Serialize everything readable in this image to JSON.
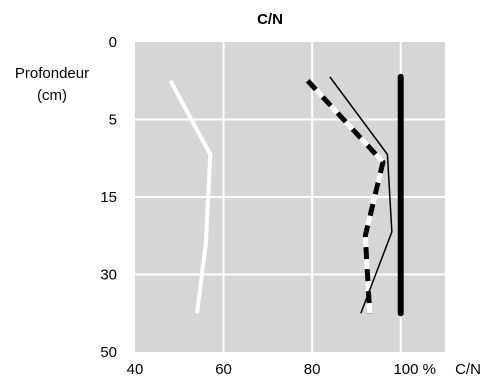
{
  "chart_data": {
    "type": "line",
    "title": "C/N",
    "ylabel_line1": "Profondeur",
    "ylabel_line2": "(cm)",
    "xlabel": "C/N",
    "x_ticks": [
      "40",
      "60",
      "80",
      "100 %"
    ],
    "y_ticks": [
      "0",
      "5",
      "15",
      "30",
      "50"
    ],
    "y_tick_positions": [
      0,
      1,
      2,
      3,
      4
    ],
    "xlim": [
      40,
      110
    ],
    "y_categorical_range": [
      0,
      4
    ],
    "series": [
      {
        "style": "white-solid",
        "points": [
          [
            48,
            0.5
          ],
          [
            57,
            1.45
          ],
          [
            56,
            2.6
          ],
          [
            54,
            3.5
          ]
        ]
      },
      {
        "style": "dashed-black-white",
        "points": [
          [
            79,
            0.5
          ],
          [
            96,
            1.55
          ],
          [
            92,
            2.5
          ],
          [
            93,
            3.5
          ]
        ]
      },
      {
        "style": "thin-black",
        "points": [
          [
            84,
            0.45
          ],
          [
            97,
            1.45
          ],
          [
            98,
            2.45
          ],
          [
            91,
            3.5
          ]
        ]
      },
      {
        "style": "thick-black",
        "points": [
          [
            100,
            0.45
          ],
          [
            100,
            3.5
          ]
        ]
      }
    ],
    "colors": {
      "plot_background": "#d6d6d6",
      "grid": "#ffffff"
    }
  }
}
